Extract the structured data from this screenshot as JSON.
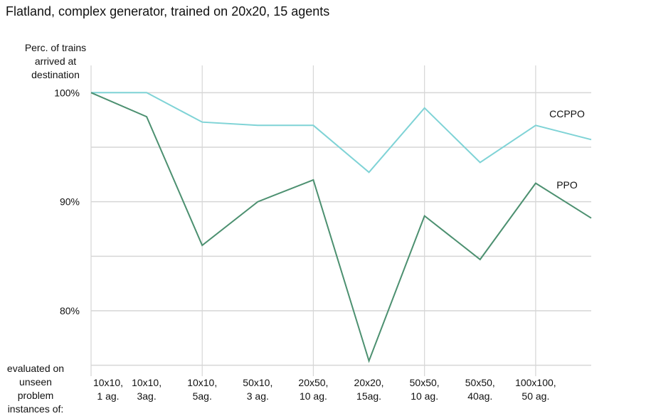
{
  "chart_data": {
    "type": "line",
    "title": "Flatland, complex generator, trained on 20x20, 15 agents",
    "ylabel_lines": [
      "Perc. of trains",
      "arrived at",
      "destination"
    ],
    "xlabel_lines": [
      "evaluated on",
      "unseen problem",
      "instances of:"
    ],
    "categories": [
      [
        "10x10,",
        "1 ag."
      ],
      [
        "10x10,",
        "3ag."
      ],
      [
        "10x10,",
        "5ag."
      ],
      [
        "50x10,",
        "3 ag."
      ],
      [
        "20x50,",
        "10 ag."
      ],
      [
        "20x20,",
        "15ag."
      ],
      [
        "50x50,",
        "10 ag."
      ],
      [
        "50x50,",
        "40ag."
      ],
      [
        "100x100,",
        "50 ag."
      ],
      [
        "",
        ""
      ]
    ],
    "ylim": [
      74,
      102.5
    ],
    "yticks": [
      {
        "value": 100,
        "label": "100%"
      },
      {
        "value": 95,
        "label": ""
      },
      {
        "value": 90,
        "label": "90%"
      },
      {
        "value": 85,
        "label": ""
      },
      {
        "value": 80,
        "label": "80%"
      },
      {
        "value": 75,
        "label": ""
      }
    ],
    "grid": true,
    "series": [
      {
        "name": "CCPPO",
        "color": "#7fd3d6",
        "values": [
          100,
          100,
          97.3,
          97.0,
          97.0,
          92.7,
          98.6,
          93.6,
          97.0,
          95.7
        ]
      },
      {
        "name": "PPO",
        "color": "#4c9070",
        "values": [
          100,
          97.8,
          86.0,
          90.0,
          92.0,
          75.4,
          88.7,
          84.7,
          91.7,
          88.5
        ]
      }
    ]
  }
}
